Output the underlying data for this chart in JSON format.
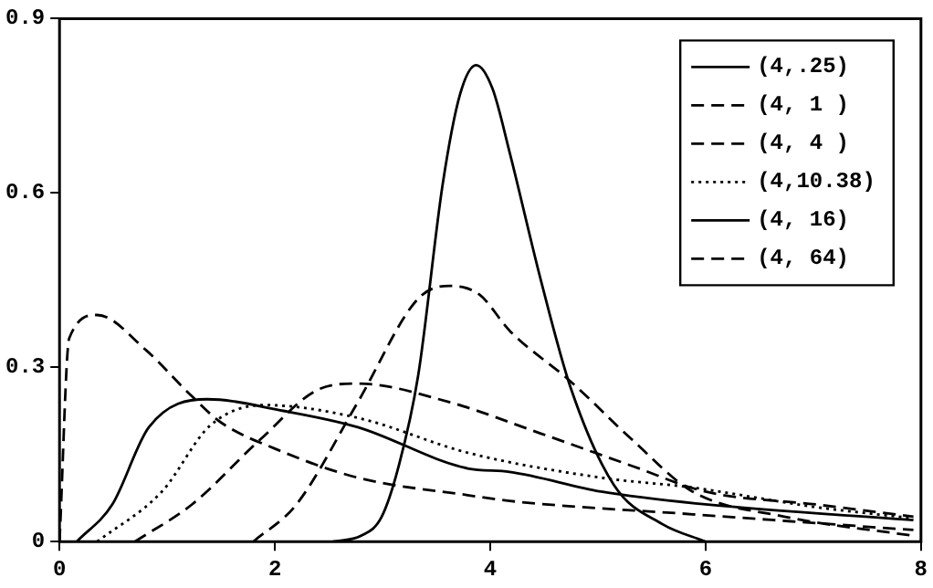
{
  "chart_data": {
    "type": "line",
    "xlim": [
      0,
      8
    ],
    "xticks": [
      0,
      2,
      4,
      6,
      8
    ],
    "ylim": [
      0,
      0.9
    ],
    "yticks": [
      0,
      0.3,
      0.6,
      0.9
    ],
    "legend": "top right",
    "grid": false,
    "marker": "none",
    "series": [
      {
        "name": "(4,.25)",
        "color": "#000000",
        "line_style": "solid",
        "x": [
          2.54,
          2.8,
          2.99,
          3.15,
          3.33,
          3.56,
          3.72,
          3.87,
          4.02,
          4.18,
          4.47,
          4.75,
          5.15,
          5.6,
          6.0
        ],
        "values": [
          0,
          0.01,
          0.042,
          0.13,
          0.285,
          0.617,
          0.77,
          0.82,
          0.78,
          0.67,
          0.45,
          0.263,
          0.097,
          0.03,
          0
        ]
      },
      {
        "name": "(4, 1 )",
        "color": "#000000",
        "line_style": "dashed",
        "x": [
          1.8,
          2.2,
          2.77,
          3.33,
          3.62,
          3.9,
          4.18,
          4.75,
          5.32,
          5.88,
          6.73,
          7.93
        ],
        "values": [
          0,
          0.064,
          0.24,
          0.418,
          0.44,
          0.425,
          0.363,
          0.275,
          0.175,
          0.086,
          0.043,
          0.01
        ]
      },
      {
        "name": "(4, 4 )",
        "color": "#000000",
        "line_style": "dashed",
        "x": [
          0.7,
          1.23,
          1.86,
          2.42,
          2.77,
          3.62,
          4.47,
          5.32,
          6.0,
          7.02,
          7.93
        ],
        "values": [
          0,
          0.064,
          0.175,
          0.263,
          0.272,
          0.24,
          0.186,
          0.13,
          0.086,
          0.064,
          0.043
        ]
      },
      {
        "name": "(4,10.38)",
        "color": "#000000",
        "line_style": "dotted",
        "x": [
          0.35,
          0.95,
          1.4,
          1.9,
          2.77,
          3.79,
          5.03,
          5.88,
          7.0,
          7.93
        ],
        "values": [
          0,
          0.086,
          0.2,
          0.235,
          0.213,
          0.153,
          0.11,
          0.093,
          0.06,
          0.04
        ]
      },
      {
        "name": "(4, 16)",
        "color": "#000000",
        "line_style": "solid",
        "x": [
          0.16,
          0.49,
          0.83,
          1.37,
          2.08,
          2.77,
          3.79,
          4.18,
          5.03,
          6.0,
          7.93
        ],
        "values": [
          0,
          0.064,
          0.197,
          0.245,
          0.225,
          0.197,
          0.126,
          0.12,
          0.086,
          0.064,
          0.037
        ]
      },
      {
        "name": "(4, 64)",
        "color": "#000000",
        "line_style": "dashed",
        "x": [
          0,
          0.09,
          0.35,
          0.8,
          1.23,
          1.5,
          2.0,
          2.77,
          3.79,
          4.18,
          5.88,
          7.93
        ],
        "values": [
          0,
          0.35,
          0.39,
          0.33,
          0.25,
          0.205,
          0.16,
          0.11,
          0.08,
          0.07,
          0.047,
          0.02
        ]
      }
    ]
  }
}
